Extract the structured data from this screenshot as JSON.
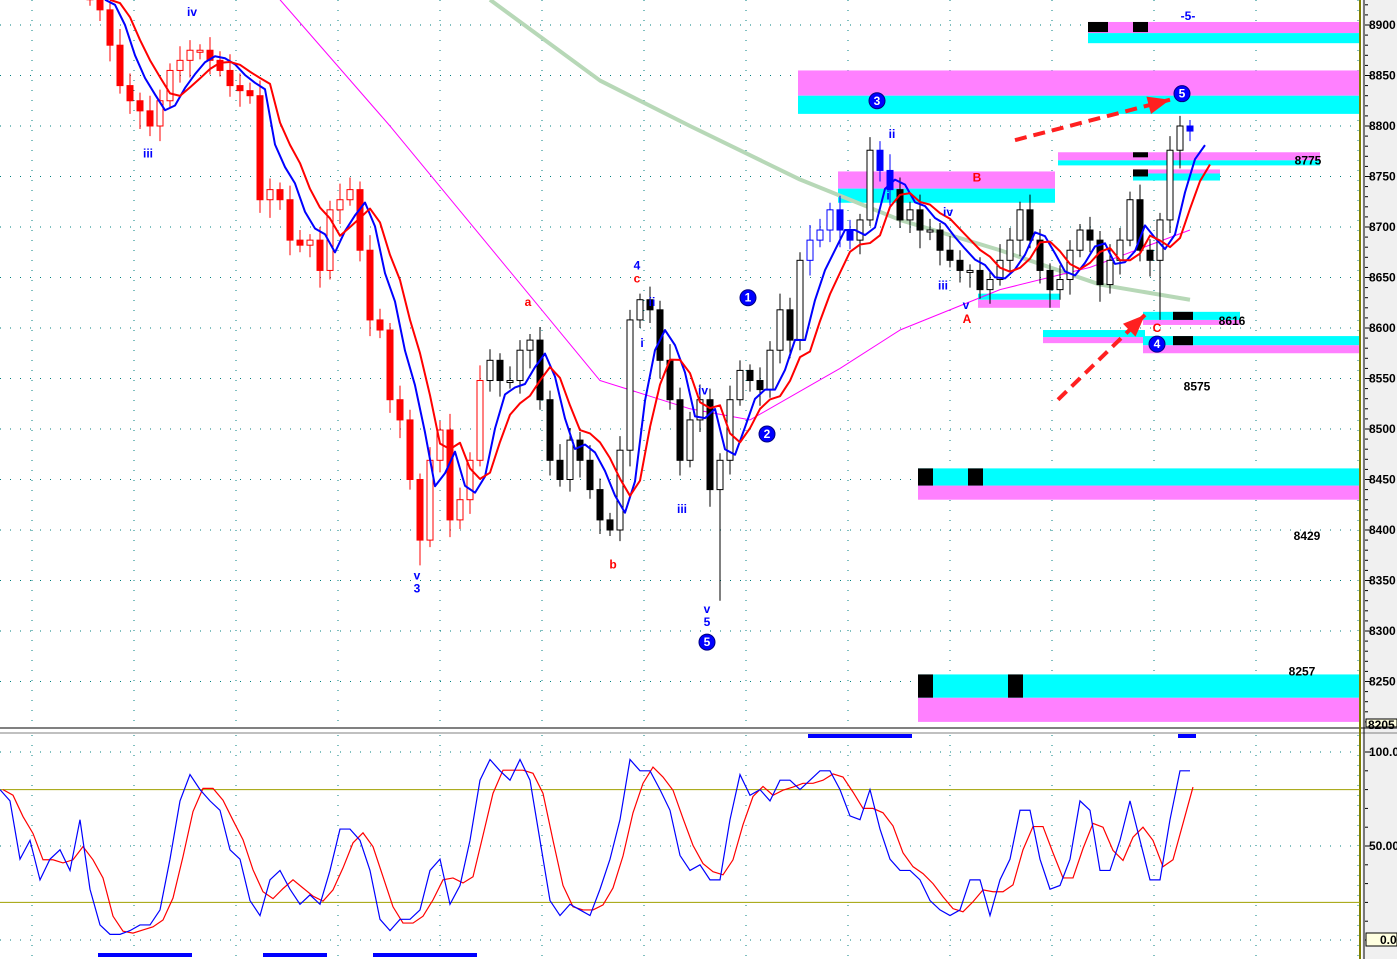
{
  "chart_data": [
    {
      "type": "candlestick",
      "price_axis": {
        "ylim": [
          8205,
          8925
        ],
        "ticks": [
          8900,
          8850,
          8800,
          8750,
          8700,
          8650,
          8600,
          8550,
          8500,
          8450,
          8400,
          8350,
          8300,
          8250
        ],
        "bottom_label": "8205"
      },
      "grid": "dotted",
      "closes": [
        8925,
        8915,
        8880,
        8840,
        8825,
        8815,
        8800,
        8825,
        8855,
        8865,
        8875,
        8875,
        8865,
        8855,
        8840,
        8835,
        8830,
        8727,
        8737,
        8727,
        8687,
        8682,
        8687,
        8657,
        8717,
        8727,
        8737,
        8677,
        8608,
        8598,
        8529,
        8509,
        8450,
        8390,
        8469,
        8499,
        8410,
        8430,
        8469,
        8548,
        8568,
        8548,
        8548,
        8578,
        8588,
        8529,
        8469,
        8450,
        8489,
        8469,
        8440,
        8410,
        8400,
        8479,
        8608,
        8628,
        8618,
        8568,
        8529,
        8469,
        8509,
        8529,
        8440,
        8469,
        8529,
        8558,
        8548,
        8539,
        8578,
        8618,
        8588,
        8667,
        8687,
        8697,
        8717,
        8697,
        8687,
        8707,
        8776,
        8756,
        8737,
        8707,
        8717,
        8697,
        8697,
        8677,
        8667,
        8657,
        8657,
        8638,
        8648,
        8667,
        8687,
        8717,
        8687,
        8657,
        8638,
        8648,
        8677,
        8697,
        8687,
        8643,
        8667,
        8687,
        8727,
        8677,
        8667,
        8707,
        8776,
        8800,
        8795
      ],
      "low_overrides": [
        {
          "index": 63,
          "low": 8330
        },
        {
          "index": 107,
          "low": 8608
        },
        {
          "index": 33,
          "low": 8365
        }
      ],
      "candle_colors": [
        {
          "from": 0,
          "to": 40,
          "color": "#ff0000"
        },
        {
          "from": 72,
          "to": 77,
          "color": "#0000ff"
        },
        {
          "from": 79,
          "to": 81,
          "color": "#0000ff"
        },
        {
          "from": 110,
          "to": 111,
          "color": "#0000ff"
        }
      ],
      "up_color": "#ffffff",
      "down_color": "#000000",
      "fast_line_color": "#0000ff",
      "slow_line_color": "#ff0000",
      "magenta_ma": {
        "color": "#ff00ff",
        "points": [
          [
            19,
            8925
          ],
          [
            30,
            8800
          ],
          [
            40,
            8680
          ],
          [
            51,
            8548
          ],
          [
            60,
            8520
          ],
          [
            66,
            8509
          ],
          [
            75,
            8560
          ],
          [
            81,
            8598
          ],
          [
            91,
            8638
          ],
          [
            100,
            8660
          ],
          [
            110,
            8697
          ]
        ]
      },
      "green_ma": {
        "color": "#b7d8b7",
        "points": [
          [
            40,
            8925
          ],
          [
            51,
            8845
          ],
          [
            60,
            8800
          ],
          [
            71,
            8747
          ],
          [
            81,
            8707
          ],
          [
            91,
            8677
          ],
          [
            101,
            8643
          ],
          [
            110,
            8628
          ]
        ]
      },
      "zones": [
        {
          "from": 100,
          "to": 127,
          "pink": [
            8892,
            8903
          ],
          "cyan": [
            8882,
            8892
          ],
          "blocks": [
            [
              100,
              102
            ],
            [
              104.5,
              106
            ]
          ]
        },
        {
          "from": 71,
          "to": 127,
          "pink": [
            8830,
            8855
          ],
          "cyan": [
            8812,
            8830
          ],
          "blocks": []
        },
        {
          "from": 75,
          "to": 96.5,
          "pink": [
            8738,
            8755
          ],
          "cyan": [
            8724,
            8738
          ],
          "blocks": []
        },
        {
          "from": 97,
          "to": 123,
          "pink": [
            8766,
            8774
          ],
          "cyan": [
            8761,
            8766
          ],
          "blocks": [
            [
              104.5,
              106
            ]
          ]
        },
        {
          "from": 104.5,
          "to": 113,
          "pink": [
            8753,
            8757
          ],
          "cyan": [
            8746,
            8753
          ],
          "blocks": [
            [
              104.5,
              106
            ]
          ]
        },
        {
          "from": 89,
          "to": 97,
          "pink": [
            8620,
            8628
          ],
          "cyan": [
            8628,
            8634
          ],
          "blocks": []
        },
        {
          "from": 105.5,
          "to": 115,
          "pink": [
            8603,
            8608
          ],
          "cyan": [
            8608,
            8616
          ],
          "blocks": [
            [
              108.5,
              110.5
            ]
          ]
        },
        {
          "from": 95.5,
          "to": 105.5,
          "pink": [
            8585,
            8591
          ],
          "cyan": [
            8591,
            8598
          ],
          "blocks": []
        },
        {
          "from": 105.5,
          "to": 127,
          "pink": [
            8575,
            8583
          ],
          "cyan": [
            8583,
            8592
          ],
          "blocks": [
            [
              108.5,
              110.5
            ]
          ]
        },
        {
          "from": 83,
          "to": 127,
          "pink": [
            8430,
            8444
          ],
          "cyan": [
            8444,
            8461
          ],
          "blocks": [
            [
              83,
              84.5
            ],
            [
              88,
              89.5
            ]
          ]
        },
        {
          "from": 83,
          "to": 127,
          "pink": [
            8210,
            8234
          ],
          "cyan": [
            8234,
            8257
          ],
          "blocks": [
            [
              83,
              84.5
            ],
            [
              92,
              93.5
            ]
          ]
        }
      ],
      "level_labels": [
        {
          "text": "8775",
          "index": 121.8,
          "price": 8762
        },
        {
          "text": "8616",
          "index": 114.2,
          "price": 8603
        },
        {
          "text": "8575",
          "index": 110.7,
          "price": 8538
        },
        {
          "text": "8429",
          "index": 121.7,
          "price": 8390
        },
        {
          "text": "8257",
          "index": 121.2,
          "price": 8256
        },
        {
          "text": "-5-",
          "index": 109.8,
          "price": 8905,
          "color": "#0000ff"
        }
      ],
      "wave_labels": [
        {
          "text": "iv",
          "index": 10.2,
          "price": 8909,
          "color": "#0000ff"
        },
        {
          "text": "iii",
          "index": 5.8,
          "price": 8769,
          "color": "#0000ff"
        },
        {
          "text": "v",
          "index": 32.7,
          "price": 8351,
          "color": "#0000ff"
        },
        {
          "text": "3",
          "index": 32.7,
          "price": 8338,
          "color": "#0000ff"
        },
        {
          "text": "a",
          "index": 43.8,
          "price": 8622,
          "color": "#ff0000"
        },
        {
          "text": "4",
          "index": 54.7,
          "price": 8658,
          "color": "#0000ff"
        },
        {
          "text": "c",
          "index": 54.7,
          "price": 8645,
          "color": "#ff0000"
        },
        {
          "text": "ii",
          "index": 56.2,
          "price": 8622,
          "color": "#0000ff"
        },
        {
          "text": "i",
          "index": 55.2,
          "price": 8581,
          "color": "#0000ff"
        },
        {
          "text": "iii",
          "index": 59.2,
          "price": 8417,
          "color": "#0000ff"
        },
        {
          "text": "iv",
          "index": 61.3,
          "price": 8534,
          "color": "#0000ff"
        },
        {
          "text": "b",
          "index": 52.3,
          "price": 8362,
          "color": "#ff0000"
        },
        {
          "text": "v",
          "index": 61.7,
          "price": 8318,
          "color": "#0000ff"
        },
        {
          "text": "5",
          "index": 61.7,
          "price": 8305,
          "color": "#0000ff"
        },
        {
          "text": "ii",
          "index": 80.2,
          "price": 8788,
          "color": "#0000ff"
        },
        {
          "text": "i",
          "index": 79.8,
          "price": 8727,
          "color": "#0000ff"
        },
        {
          "text": "iv",
          "index": 85.8,
          "price": 8711,
          "color": "#0000ff"
        },
        {
          "text": "iii",
          "index": 85.3,
          "price": 8638,
          "color": "#0000ff"
        },
        {
          "text": "v",
          "index": 87.6,
          "price": 8619,
          "color": "#0000ff"
        },
        {
          "text": "A",
          "index": 87.7,
          "price": 8605,
          "color": "#ff0000"
        },
        {
          "text": "B",
          "index": 88.7,
          "price": 8745,
          "color": "#ff0000"
        },
        {
          "text": "C",
          "index": 106.7,
          "price": 8596,
          "color": "#ff0000"
        }
      ],
      "circled_labels": [
        {
          "text": "5",
          "index": 61.7,
          "price": 8289
        },
        {
          "text": "1",
          "index": 65.8,
          "price": 8630
        },
        {
          "text": "2",
          "index": 67.7,
          "price": 8495
        },
        {
          "text": "3",
          "index": 78.7,
          "price": 8825
        },
        {
          "text": "5",
          "index": 109.2,
          "price": 8832
        },
        {
          "text": "4",
          "index": 106.7,
          "price": 8584
        }
      ],
      "arrows": [
        {
          "from": [
            92.5,
            8786
          ],
          "to": [
            108,
            8826
          ],
          "color": "#ff2020"
        },
        {
          "from": [
            96.8,
            8529
          ],
          "to": [
            105.5,
            8613
          ],
          "color": "#ff2020"
        }
      ]
    },
    {
      "type": "line",
      "title": "",
      "yaxis": {
        "ylim": [
          0,
          100
        ],
        "ticks": [
          "100.0",
          "50.00",
          "0.0"
        ]
      },
      "reference_lines": [
        80,
        20
      ],
      "k_color": "#0000ff",
      "d_color": "#ff0000",
      "k_values": [
        80,
        74,
        43,
        53,
        32,
        43,
        48,
        37,
        64,
        27,
        8,
        3,
        3,
        5,
        8,
        8,
        16,
        43,
        74,
        88,
        80,
        74,
        69,
        48,
        43,
        21,
        13,
        32,
        37,
        27,
        19,
        24,
        19,
        37,
        59,
        59,
        53,
        37,
        11,
        5,
        11,
        11,
        16,
        37,
        43,
        19,
        29,
        53,
        85,
        96,
        90,
        85,
        96,
        85,
        53,
        21,
        13,
        19,
        16,
        13,
        27,
        43,
        64,
        96,
        90,
        90,
        80,
        69,
        45,
        37,
        40,
        32,
        32,
        64,
        88,
        77,
        80,
        74,
        85,
        85,
        80,
        85,
        90,
        90,
        80,
        66,
        64,
        80,
        59,
        43,
        37,
        37,
        32,
        21,
        16,
        13,
        16,
        32,
        32,
        13,
        32,
        43,
        69,
        69,
        43,
        27,
        29,
        43,
        74,
        69,
        37,
        37,
        53,
        74,
        53,
        32,
        32,
        64,
        90,
        90
      ],
      "bottom_bars": [
        [
          9.8,
          19.2
        ],
        [
          26.3,
          32.7
        ],
        [
          37.3,
          47.7
        ]
      ],
      "top_bars": [
        [
          80.8,
          91.2
        ],
        [
          117.8,
          119.6
        ]
      ]
    }
  ]
}
